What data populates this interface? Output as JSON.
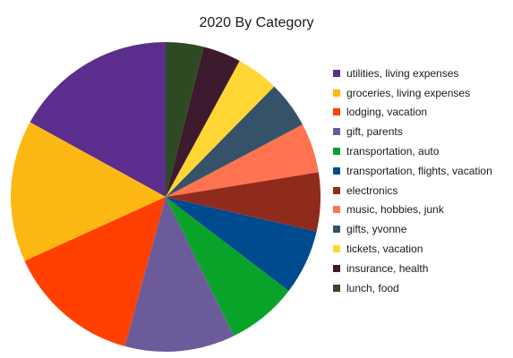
{
  "chart_data": {
    "type": "pie",
    "title": "2020 By Category",
    "legend_position": "right",
    "slices": [
      {
        "label": "utilities, living expenses",
        "value": 18.0,
        "color": "#5B2E8E"
      },
      {
        "label": "groceries, living expenses",
        "value": 15.7,
        "color": "#FDB813"
      },
      {
        "label": "lodging, vacation",
        "value": 14.8,
        "color": "#FF4000"
      },
      {
        "label": "gift, parents",
        "value": 12.2,
        "color": "#6B5B9A"
      },
      {
        "label": "transportation, auto",
        "value": 7.8,
        "color": "#0AA32A"
      },
      {
        "label": "transportation, flights, vacation",
        "value": 7.2,
        "color": "#004A8F"
      },
      {
        "label": "electronics",
        "value": 6.5,
        "color": "#8F2B1C"
      },
      {
        "label": "music, hobbies, junk",
        "value": 5.5,
        "color": "#FF7350"
      },
      {
        "label": "gifts, yvonne",
        "value": 5.2,
        "color": "#355269"
      },
      {
        "label": "tickets, vacation",
        "value": 4.7,
        "color": "#FFD633"
      },
      {
        "label": "insurance, health",
        "value": 4.2,
        "color": "#3E1A2E"
      },
      {
        "label": "lunch, food",
        "value": 4.2,
        "color": "#2E4A22"
      }
    ]
  }
}
